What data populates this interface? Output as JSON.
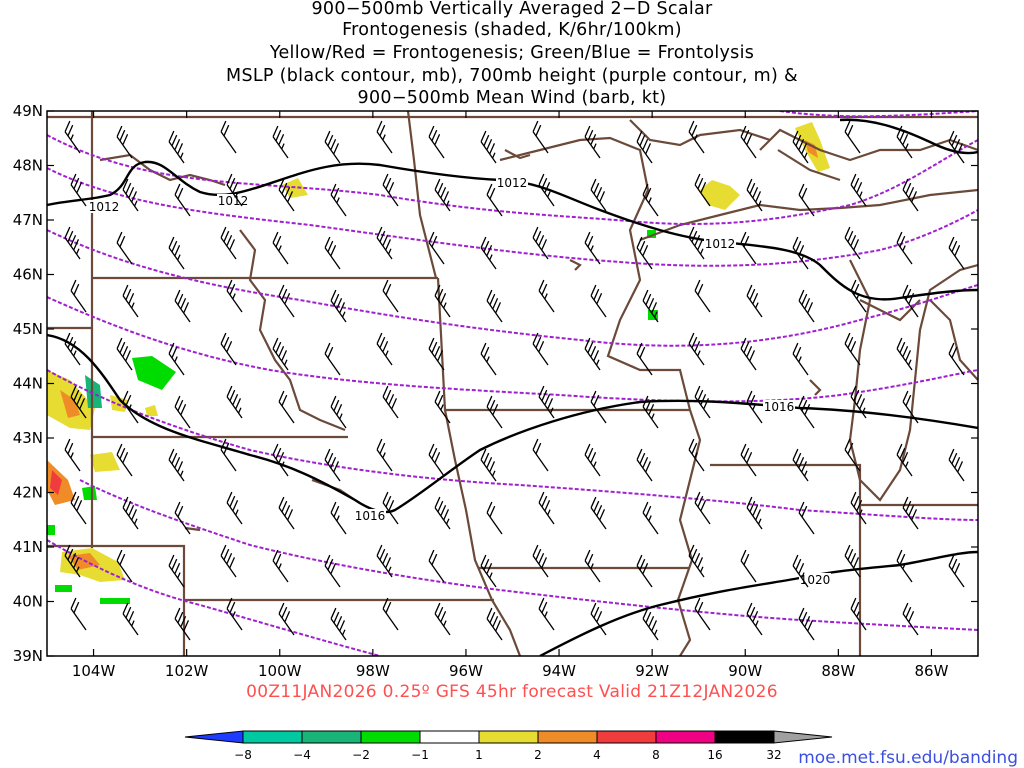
{
  "title": {
    "line1": "900−500mb Vertically Averaged 2−D Scalar",
    "line2": "Frontogenesis (shaded, K/6hr/100km)",
    "line3": "Yellow/Red = Frontogenesis;  Green/Blue = Frontolysis",
    "line4": "MSLP (black contour, mb), 700mb height (purple contour, m) &",
    "line5": "900−500mb Mean Wind (barb, kt)"
  },
  "valid_text": "00Z11JAN2026 0.25º GFS 45hr forecast Valid 21Z12JAN2026",
  "credit": "moe.met.fsu.edu/banding",
  "map": {
    "lat_labels": [
      "49N",
      "48N",
      "47N",
      "46N",
      "45N",
      "44N",
      "43N",
      "42N",
      "41N",
      "40N",
      "39N"
    ],
    "lon_labels": [
      "104W",
      "102W",
      "100W",
      "98W",
      "96W",
      "94W",
      "92W",
      "90W",
      "88W",
      "86W"
    ],
    "lat_range": [
      39,
      49
    ],
    "lon_range": [
      -105,
      -85
    ],
    "isobar_labels": [
      "1012",
      "1012",
      "1012",
      "1012",
      "1016",
      "1016",
      "1020"
    ],
    "colors": {
      "isobar": "#000000",
      "height": "#a020d0",
      "state_border": "#6b4a3a",
      "barb": "#000000"
    }
  },
  "colorbar": {
    "ticks": [
      "−8",
      "−4",
      "−2",
      "−1",
      "1",
      "2",
      "4",
      "8",
      "16",
      "32"
    ],
    "colors": [
      "#1e3cff",
      "#00c8a0",
      "#18b478",
      "#00dc00",
      "#ffffff",
      "#e6dc32",
      "#f08c28",
      "#f03c3c",
      "#f00082",
      "#000000",
      "#a0a0a0"
    ]
  }
}
